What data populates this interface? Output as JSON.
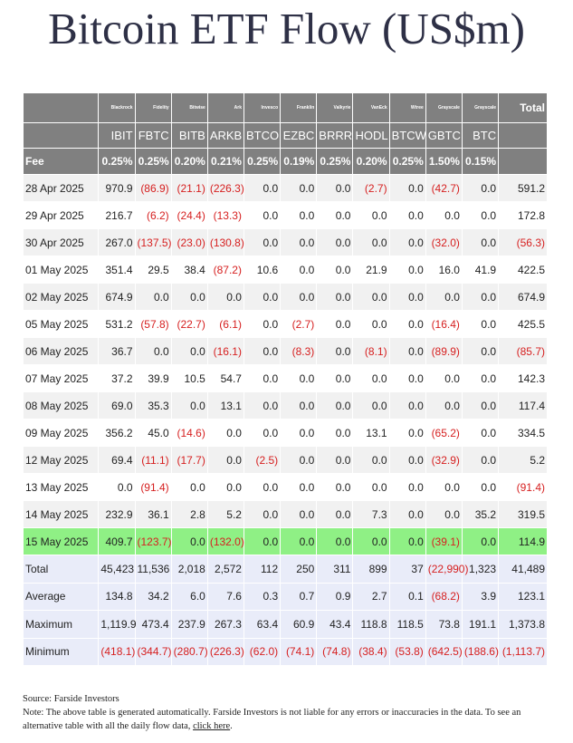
{
  "title": "Bitcoin ETF Flow (US$m)",
  "colors": {
    "header_bg": "#808080",
    "negative": "#d62020",
    "highlight": "#8ff085",
    "summary_bg": "#e9ecf9",
    "stripe": "#f1f1f1"
  },
  "issuers": [
    "Blackrock",
    "Fidelity",
    "Bitwise",
    "Ark",
    "Invesco",
    "Franklin",
    "Valkyrie",
    "VanEck",
    "Wtree",
    "Grayscale",
    "Grayscale"
  ],
  "total_label": "Total",
  "tickers": [
    "IBIT",
    "FBTC",
    "BITB",
    "ARKB",
    "BTCO",
    "EZBC",
    "BRRR",
    "HODL",
    "BTCW",
    "GBTC",
    "BTC"
  ],
  "fee_label": "Fee",
  "fees": [
    "0.25%",
    "0.25%",
    "0.20%",
    "0.21%",
    "0.25%",
    "0.19%",
    "0.25%",
    "0.20%",
    "0.25%",
    "1.50%",
    "0.15%"
  ],
  "rows": [
    {
      "date": "28 Apr 2025",
      "values": [
        "970.9",
        "(86.9)",
        "(21.1)",
        "(226.3)",
        "0.0",
        "0.0",
        "0.0",
        "(2.7)",
        "0.0",
        "(42.7)",
        "0.0"
      ],
      "total": "591.2"
    },
    {
      "date": "29 Apr 2025",
      "values": [
        "216.7",
        "(6.2)",
        "(24.4)",
        "(13.3)",
        "0.0",
        "0.0",
        "0.0",
        "0.0",
        "0.0",
        "0.0",
        "0.0"
      ],
      "total": "172.8"
    },
    {
      "date": "30 Apr 2025",
      "values": [
        "267.0",
        "(137.5)",
        "(23.0)",
        "(130.8)",
        "0.0",
        "0.0",
        "0.0",
        "0.0",
        "0.0",
        "(32.0)",
        "0.0"
      ],
      "total": "(56.3)"
    },
    {
      "date": "01 May 2025",
      "values": [
        "351.4",
        "29.5",
        "38.4",
        "(87.2)",
        "10.6",
        "0.0",
        "0.0",
        "21.9",
        "0.0",
        "16.0",
        "41.9"
      ],
      "total": "422.5"
    },
    {
      "date": "02 May 2025",
      "values": [
        "674.9",
        "0.0",
        "0.0",
        "0.0",
        "0.0",
        "0.0",
        "0.0",
        "0.0",
        "0.0",
        "0.0",
        "0.0"
      ],
      "total": "674.9"
    },
    {
      "date": "05 May 2025",
      "values": [
        "531.2",
        "(57.8)",
        "(22.7)",
        "(6.1)",
        "0.0",
        "(2.7)",
        "0.0",
        "0.0",
        "0.0",
        "(16.4)",
        "0.0"
      ],
      "total": "425.5"
    },
    {
      "date": "06 May 2025",
      "values": [
        "36.7",
        "0.0",
        "0.0",
        "(16.1)",
        "0.0",
        "(8.3)",
        "0.0",
        "(8.1)",
        "0.0",
        "(89.9)",
        "0.0"
      ],
      "total": "(85.7)"
    },
    {
      "date": "07 May 2025",
      "values": [
        "37.2",
        "39.9",
        "10.5",
        "54.7",
        "0.0",
        "0.0",
        "0.0",
        "0.0",
        "0.0",
        "0.0",
        "0.0"
      ],
      "total": "142.3"
    },
    {
      "date": "08 May 2025",
      "values": [
        "69.0",
        "35.3",
        "0.0",
        "13.1",
        "0.0",
        "0.0",
        "0.0",
        "0.0",
        "0.0",
        "0.0",
        "0.0"
      ],
      "total": "117.4"
    },
    {
      "date": "09 May 2025",
      "values": [
        "356.2",
        "45.0",
        "(14.6)",
        "0.0",
        "0.0",
        "0.0",
        "0.0",
        "13.1",
        "0.0",
        "(65.2)",
        "0.0"
      ],
      "total": "334.5"
    },
    {
      "date": "12 May 2025",
      "values": [
        "69.4",
        "(11.1)",
        "(17.7)",
        "0.0",
        "(2.5)",
        "0.0",
        "0.0",
        "0.0",
        "0.0",
        "(32.9)",
        "0.0"
      ],
      "total": "5.2"
    },
    {
      "date": "13 May 2025",
      "values": [
        "0.0",
        "(91.4)",
        "0.0",
        "0.0",
        "0.0",
        "0.0",
        "0.0",
        "0.0",
        "0.0",
        "0.0",
        "0.0"
      ],
      "total": "(91.4)"
    },
    {
      "date": "14 May 2025",
      "values": [
        "232.9",
        "36.1",
        "2.8",
        "5.2",
        "0.0",
        "0.0",
        "0.0",
        "7.3",
        "0.0",
        "0.0",
        "35.2"
      ],
      "total": "319.5"
    },
    {
      "date": "15 May 2025",
      "values": [
        "409.7",
        "(123.7)",
        "0.0",
        "(132.0)",
        "0.0",
        "0.0",
        "0.0",
        "0.0",
        "0.0",
        "(39.1)",
        "0.0"
      ],
      "total": "114.9",
      "highlight": true
    }
  ],
  "summary": [
    {
      "label": "Total",
      "values": [
        "45,423",
        "11,536",
        "2,018",
        "2,572",
        "112",
        "250",
        "311",
        "899",
        "37",
        "(22,990)",
        "1,323"
      ],
      "total": "41,489"
    },
    {
      "label": "Average",
      "values": [
        "134.8",
        "34.2",
        "6.0",
        "7.6",
        "0.3",
        "0.7",
        "0.9",
        "2.7",
        "0.1",
        "(68.2)",
        "3.9"
      ],
      "total": "123.1"
    },
    {
      "label": "Maximum",
      "values": [
        "1,119.9",
        "473.4",
        "237.9",
        "267.3",
        "63.4",
        "60.9",
        "43.4",
        "118.8",
        "118.5",
        "73.8",
        "191.1"
      ],
      "total": "1,373.8"
    },
    {
      "label": "Minimum",
      "values": [
        "(418.1)",
        "(344.7)",
        "(280.7)",
        "(226.3)",
        "(62.0)",
        "(74.1)",
        "(74.8)",
        "(38.4)",
        "(53.8)",
        "(642.5)",
        "(188.6)"
      ],
      "total": "(1,113.7)"
    }
  ],
  "footer": {
    "source": "Source: Farside Investors",
    "note": "Note: The above table is generated automatically. Farside Investors is not liable for any errors or inaccuracies in the data. To see an alternative table with all the daily flow data, ",
    "link_text": "click here",
    "after_link": "."
  }
}
